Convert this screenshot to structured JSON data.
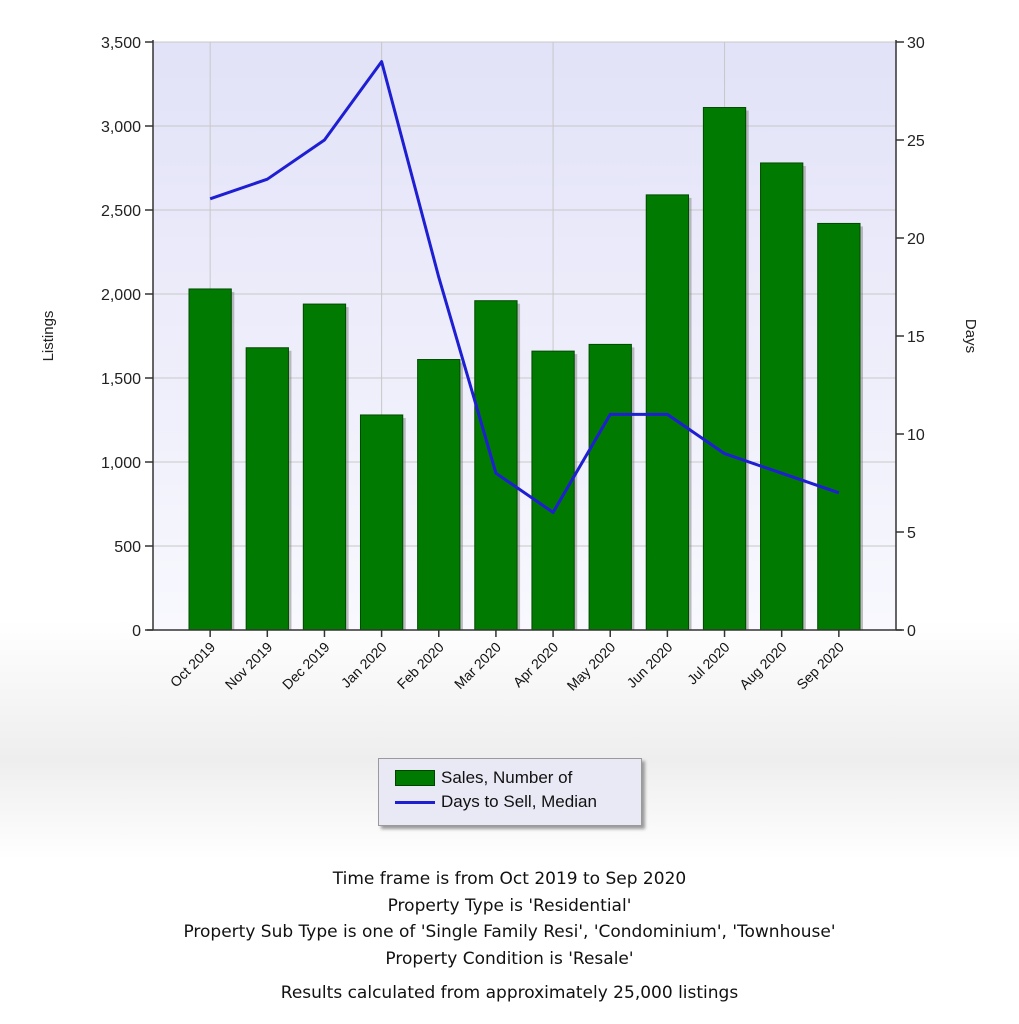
{
  "chart_data": {
    "type": "bar",
    "categories": [
      "Oct 2019",
      "Nov 2019",
      "Dec 2019",
      "Jan 2020",
      "Feb 2020",
      "Mar 2020",
      "Apr 2020",
      "May 2020",
      "Jun 2020",
      "Jul 2020",
      "Aug 2020",
      "Sep 2020"
    ],
    "series": [
      {
        "name": "Sales, Number of",
        "type": "bar",
        "axis": "left",
        "color": "#007a00",
        "values": [
          2030,
          1680,
          1940,
          1280,
          1610,
          1960,
          1660,
          1700,
          2590,
          3110,
          2780,
          2420
        ]
      },
      {
        "name": "Days to Sell, Median",
        "type": "line",
        "axis": "right",
        "color": "#1e1ed2",
        "values": [
          22,
          23,
          25,
          29,
          18,
          8,
          6,
          11,
          11,
          9,
          8,
          7
        ]
      }
    ],
    "ylabel": "Listings",
    "y2label": "Days",
    "ylim": [
      0,
      3500
    ],
    "y2lim": [
      0,
      30
    ],
    "yticks": [
      0,
      500,
      1000,
      1500,
      2000,
      2500,
      3000,
      3500
    ],
    "y2ticks": [
      0,
      5,
      10,
      15,
      20,
      25,
      30
    ],
    "ytick_labels": [
      "0",
      "500",
      "1,000",
      "1,500",
      "2,000",
      "2,500",
      "3,000",
      "3,500"
    ],
    "y2tick_labels": [
      "0",
      "5",
      "10",
      "15",
      "20",
      "25",
      "30"
    ],
    "grid": true,
    "legend_position": "bottom-center"
  },
  "legend": {
    "items": [
      "Sales, Number of",
      "Days to Sell, Median"
    ]
  },
  "notes": {
    "time_frame": "Time frame is from Oct 2019 to Sep 2020",
    "property_type": "Property Type is 'Residential'",
    "sub_type": "Property Sub Type is one of 'Single Family Resi', 'Condominium', 'Townhouse'",
    "condition": "Property Condition is 'Resale'",
    "results": "Results calculated from approximately 25,000 listings"
  }
}
